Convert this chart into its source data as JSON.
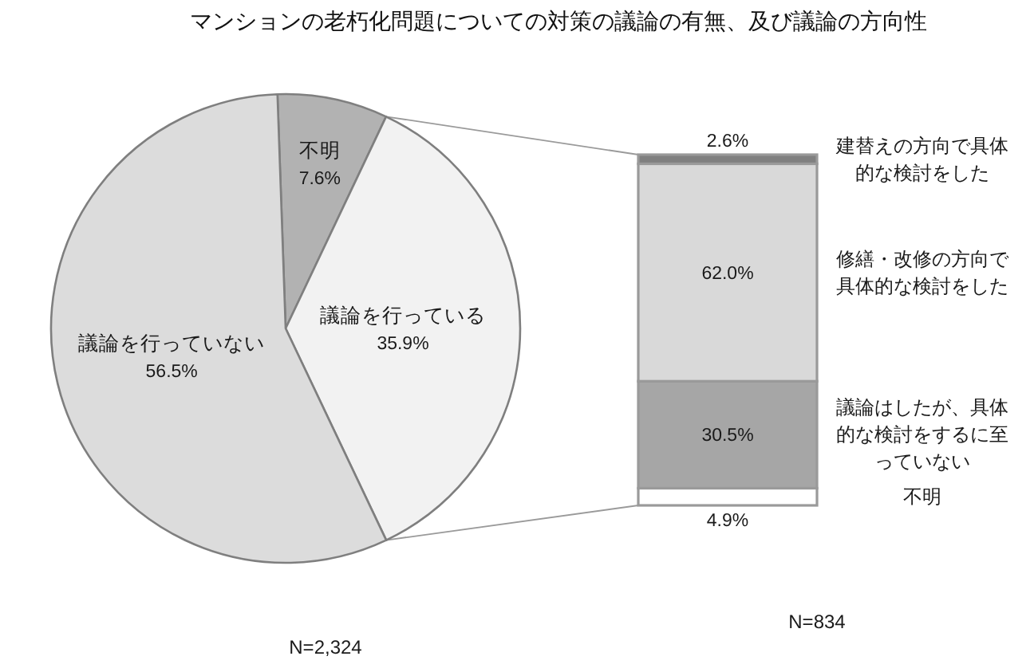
{
  "chart_data": [
    {
      "type": "pie",
      "title": "マンションの老朽化問題についての対策の議論の有無、及び議論の方向性",
      "categories": [
        "不明",
        "議論を行っている",
        "議論を行っていない"
      ],
      "values": [
        7.6,
        35.9,
        56.5
      ],
      "colors": [
        "#b2b2b2",
        "#f2f2f2",
        "#dcdcdc"
      ],
      "value_labels": [
        "7.6%",
        "35.9%",
        "56.5%"
      ],
      "annotations": [
        "N=2,324"
      ]
    },
    {
      "type": "bar",
      "stacked": true,
      "categories": [
        null
      ],
      "series": [
        {
          "name": "不明",
          "color": "#ffffff",
          "values": [
            4.9
          ],
          "value_labels": [
            "4.9%"
          ]
        },
        {
          "name": "議論はしたが、具体的な検討をするに至っていない",
          "color": "#a6a6a6",
          "values": [
            30.5
          ],
          "value_labels": [
            "30.5%"
          ]
        },
        {
          "name": "修繕・改修の方向で具体的な検討をした",
          "color": "#d9d9d9",
          "values": [
            62.0
          ],
          "value_labels": [
            "62.0%"
          ]
        },
        {
          "name": "建替えの方向で具体的な検討をした",
          "color": "#808080",
          "values": [
            2.6
          ],
          "value_labels": [
            "2.6%"
          ]
        }
      ],
      "annotations": [
        "N=834"
      ]
    }
  ]
}
